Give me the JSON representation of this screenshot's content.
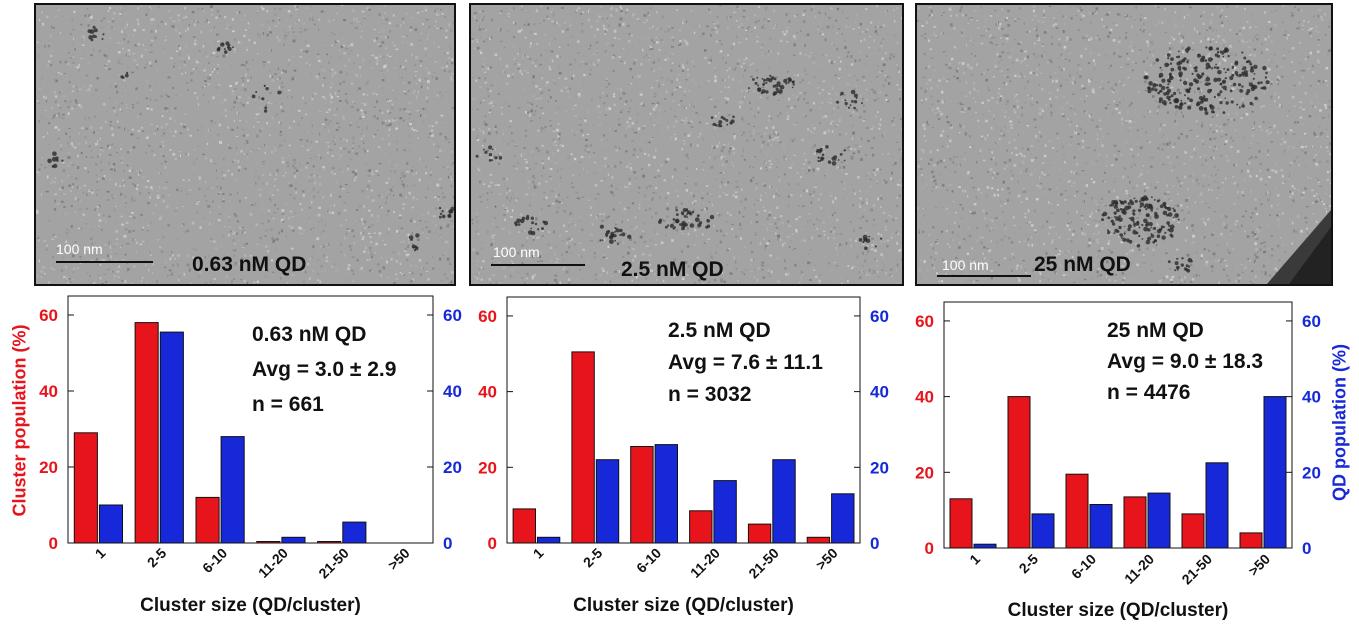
{
  "panels": [
    {
      "conc_label": "0.63 nM QD",
      "scalebar_label": "100 nm"
    },
    {
      "conc_label": "2.5 nM QD",
      "scalebar_label": "100 nm"
    },
    {
      "conc_label": "25 nM QD",
      "scalebar_label": "100 nm"
    }
  ],
  "y_axis_left_label": "Cluster population (%)",
  "y_axis_right_label": "QD population (%)",
  "colors": {
    "cluster": "#e8141c",
    "qd": "#1628d8"
  },
  "chart_data": [
    {
      "type": "bar",
      "categories": [
        "1",
        "2-5",
        "6-10",
        "11-20",
        "21-50",
        ">50"
      ],
      "series": [
        {
          "values": [
            29,
            58,
            12,
            0.4,
            0.4,
            0
          ]
        },
        {
          "values": [
            10,
            55.5,
            28,
            1.5,
            5.5,
            0
          ]
        }
      ],
      "xlabel": "Cluster size (QD/cluster)",
      "ylim": [
        0,
        65
      ],
      "yticks": [
        "0",
        "20",
        "40",
        "60"
      ],
      "annotation": [
        "0.63 nM QD",
        "Avg = 3.0 ± 2.9",
        "n = 661"
      ]
    },
    {
      "type": "bar",
      "categories": [
        "1",
        "2-5",
        "6-10",
        "11-20",
        "21-50",
        ">50"
      ],
      "series": [
        {
          "values": [
            9,
            50.5,
            25.5,
            8.5,
            5,
            1.5
          ]
        },
        {
          "values": [
            1.5,
            22,
            26,
            16.5,
            22,
            13
          ]
        }
      ],
      "xlabel": "Cluster size (QD/cluster)",
      "ylim": [
        0,
        65
      ],
      "yticks": [
        "0",
        "20",
        "40",
        "60"
      ],
      "annotation": [
        "2.5 nM QD",
        "Avg = 7.6 ± 11.1",
        "n = 3032"
      ]
    },
    {
      "type": "bar",
      "categories": [
        "1",
        "2-5",
        "6-10",
        "11-20",
        "21-50",
        ">50"
      ],
      "series": [
        {
          "values": [
            13,
            40,
            19.5,
            13.5,
            9,
            4
          ]
        },
        {
          "values": [
            1,
            9,
            11.5,
            14.5,
            22.5,
            40
          ]
        }
      ],
      "xlabel": "Cluster size (QD/cluster)",
      "ylim": [
        0,
        65
      ],
      "yticks": [
        "0",
        "20",
        "40",
        "60"
      ],
      "annotation": [
        "25 nM QD",
        "Avg = 9.0 ± 18.3",
        "n = 4476"
      ]
    }
  ]
}
